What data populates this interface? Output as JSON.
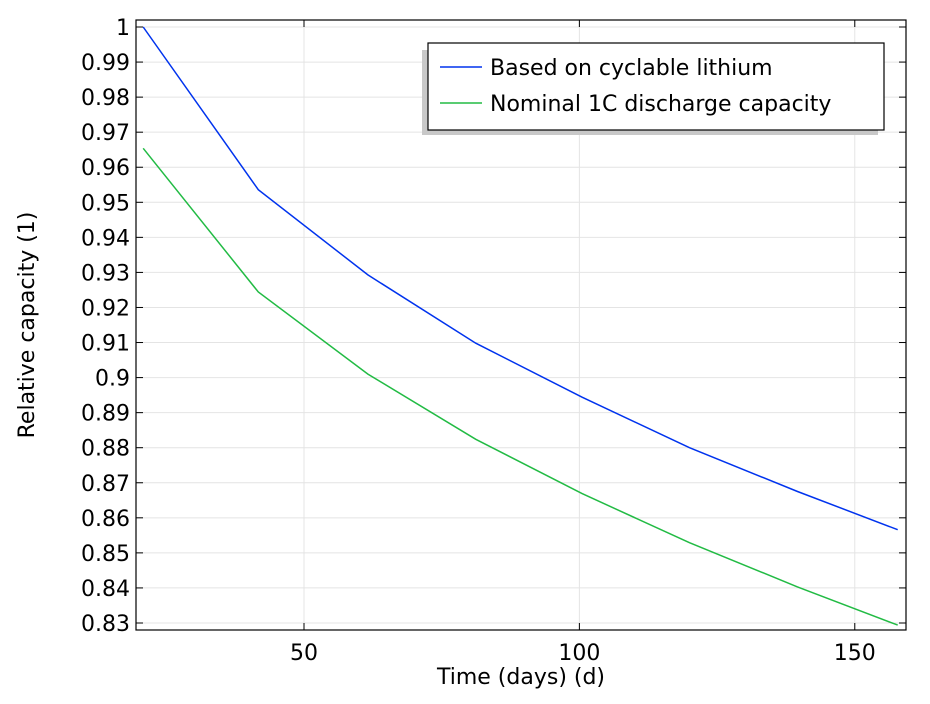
{
  "chart_data": {
    "type": "line",
    "title": "",
    "xlabel": "Time (days) (d)",
    "ylabel": "Relative capacity (1)",
    "xlim": [
      19.5,
      159.3
    ],
    "ylim": [
      0.828,
      1.002
    ],
    "xticks": [
      50,
      100,
      150
    ],
    "yticks": [
      1,
      0.99,
      0.98,
      0.97,
      0.96,
      0.95,
      0.94,
      0.93,
      0.92,
      0.91,
      0.9,
      0.89,
      0.88,
      0.87,
      0.86,
      0.85,
      0.84,
      0.83
    ],
    "grid": true,
    "legend_position": "top-right",
    "series": [
      {
        "name": "Based on cyclable lithium",
        "color": "#0033ee",
        "x": [
          20.8,
          41.7,
          61.6,
          81.2,
          100.5,
          120,
          139.6,
          157.8
        ],
        "y": [
          1.0,
          0.9536,
          0.9293,
          0.9098,
          0.8944,
          0.88,
          0.8675,
          0.8566
        ]
      },
      {
        "name": "Nominal 1C discharge capacity",
        "color": "#22bb44",
        "x": [
          20.8,
          41.7,
          61.6,
          81.2,
          100.5,
          120,
          139.6,
          157.8
        ],
        "y": [
          0.9654,
          0.9244,
          0.901,
          0.8824,
          0.8669,
          0.8529,
          0.8403,
          0.8294
        ]
      }
    ]
  }
}
